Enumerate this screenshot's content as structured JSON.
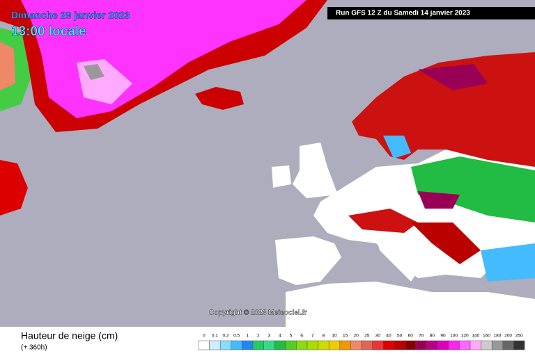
{
  "header": {
    "date": "Dimanche 29 janvier 2023",
    "time": "13:00 locale",
    "run": "Run GFS 12 Z du Samedi 14 janvier 2023"
  },
  "copyright": "Copyright © 2023 Meteociel.fr",
  "legend": {
    "title": "Hauteur de neige (cm)",
    "subtitle": "(+ 360h)",
    "items": [
      {
        "label": "0",
        "color": "#ffffff"
      },
      {
        "label": "0.1",
        "color": "#cceeff"
      },
      {
        "label": "0.2",
        "color": "#88ddff"
      },
      {
        "label": "0.5",
        "color": "#44bbff"
      },
      {
        "label": "1",
        "color": "#2288ee"
      },
      {
        "label": "2",
        "color": "#22cc66"
      },
      {
        "label": "3",
        "color": "#33dd88"
      },
      {
        "label": "4",
        "color": "#22bb44"
      },
      {
        "label": "5",
        "color": "#55cc22"
      },
      {
        "label": "6",
        "color": "#88dd11"
      },
      {
        "label": "7",
        "color": "#aadd00"
      },
      {
        "label": "8",
        "color": "#ccdd00"
      },
      {
        "label": "10",
        "color": "#eecc00"
      },
      {
        "label": "15",
        "color": "#ee9900"
      },
      {
        "label": "20",
        "color": "#ee8866"
      },
      {
        "label": "25",
        "color": "#dd6655"
      },
      {
        "label": "30",
        "color": "#ee3333"
      },
      {
        "label": "40",
        "color": "#dd0000"
      },
      {
        "label": "50",
        "color": "#bb0000"
      },
      {
        "label": "60",
        "color": "#880000"
      },
      {
        "label": "70",
        "color": "#990055"
      },
      {
        "label": "80",
        "color": "#bb0088"
      },
      {
        "label": "90",
        "color": "#dd00bb"
      },
      {
        "label": "100",
        "color": "#ff22ee"
      },
      {
        "label": "120",
        "color": "#ff66ff"
      },
      {
        "label": "140",
        "color": "#ffaaff"
      },
      {
        "label": "160",
        "color": "#cccccc"
      },
      {
        "label": "180",
        "color": "#999999"
      },
      {
        "label": "200",
        "color": "#666666"
      },
      {
        "label": "250",
        "color": "#333333"
      }
    ]
  }
}
